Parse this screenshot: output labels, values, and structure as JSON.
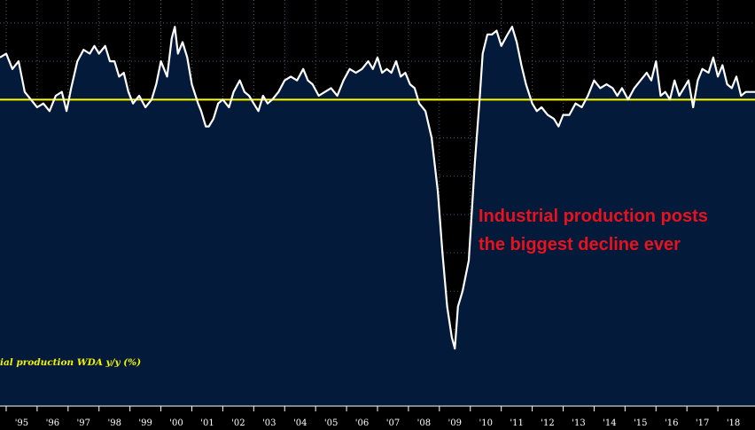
{
  "colors": {
    "background": "#000000",
    "fill": "#031a3a",
    "series_line": "#ffffff",
    "zero_line": "#ffff00",
    "grid": "#4a5a78",
    "label": "#f2f200",
    "annotation": "#e8121e"
  },
  "chart_data": {
    "type": "area",
    "series_label": "ial production WDA y/y (%)",
    "xlim": [
      1994.8,
      2019.2
    ],
    "ylim": [
      -40,
      13
    ],
    "x_ticks": [
      {
        "x": 1995.5,
        "label": "'95"
      },
      {
        "x": 1996.5,
        "label": "'96"
      },
      {
        "x": 1997.5,
        "label": "'97"
      },
      {
        "x": 1998.5,
        "label": "'98"
      },
      {
        "x": 1999.5,
        "label": "'99"
      },
      {
        "x": 2000.5,
        "label": "'00"
      },
      {
        "x": 2001.5,
        "label": "'01"
      },
      {
        "x": 2002.5,
        "label": "'02"
      },
      {
        "x": 2003.5,
        "label": "'03"
      },
      {
        "x": 2004.5,
        "label": "'04"
      },
      {
        "x": 2005.5,
        "label": "'05"
      },
      {
        "x": 2006.5,
        "label": "'06"
      },
      {
        "x": 2007.5,
        "label": "'07"
      },
      {
        "x": 2008.5,
        "label": "'08"
      },
      {
        "x": 2009.5,
        "label": "'09"
      },
      {
        "x": 2010.5,
        "label": "'10"
      },
      {
        "x": 2011.5,
        "label": "'11"
      },
      {
        "x": 2012.5,
        "label": "'12"
      },
      {
        "x": 2013.5,
        "label": "'13"
      },
      {
        "x": 2014.5,
        "label": "'14"
      },
      {
        "x": 2015.5,
        "label": "'15"
      },
      {
        "x": 2016.5,
        "label": "'16"
      },
      {
        "x": 2017.5,
        "label": "'17"
      },
      {
        "x": 2018.5,
        "label": "'18"
      }
    ],
    "reference_line": 0,
    "annotation": [
      "Industrial production posts",
      "the biggest decline ever"
    ],
    "points": [
      [
        1994.8,
        5.5
      ],
      [
        1995.0,
        6.0
      ],
      [
        1995.2,
        4.0
      ],
      [
        1995.4,
        5.0
      ],
      [
        1995.6,
        1.0
      ],
      [
        1995.8,
        0.0
      ],
      [
        1996.0,
        -1.0
      ],
      [
        1996.2,
        -0.5
      ],
      [
        1996.4,
        -1.5
      ],
      [
        1996.6,
        0.5
      ],
      [
        1996.8,
        1.0
      ],
      [
        1996.95,
        -1.5
      ],
      [
        1997.1,
        1.5
      ],
      [
        1997.3,
        5.0
      ],
      [
        1997.5,
        6.5
      ],
      [
        1997.7,
        6.0
      ],
      [
        1997.85,
        7.0
      ],
      [
        1998.0,
        6.0
      ],
      [
        1998.2,
        7.0
      ],
      [
        1998.35,
        5.0
      ],
      [
        1998.5,
        5.0
      ],
      [
        1998.65,
        3.0
      ],
      [
        1998.8,
        3.5
      ],
      [
        1998.95,
        1.0
      ],
      [
        1999.1,
        -0.5
      ],
      [
        1999.3,
        0.5
      ],
      [
        1999.5,
        -1.0
      ],
      [
        1999.7,
        0.0
      ],
      [
        1999.85,
        2.0
      ],
      [
        2000.0,
        5.0
      ],
      [
        2000.2,
        3.0
      ],
      [
        2000.35,
        8.0
      ],
      [
        2000.45,
        9.5
      ],
      [
        2000.55,
        6.0
      ],
      [
        2000.7,
        7.5
      ],
      [
        2000.85,
        5.5
      ],
      [
        2001.0,
        2.0
      ],
      [
        2001.2,
        -0.5
      ],
      [
        2001.3,
        -1.5
      ],
      [
        2001.45,
        -3.5
      ],
      [
        2001.55,
        -3.5
      ],
      [
        2001.7,
        -2.5
      ],
      [
        2001.85,
        -0.5
      ],
      [
        2002.0,
        0.0
      ],
      [
        2002.2,
        -1.0
      ],
      [
        2002.35,
        1.0
      ],
      [
        2002.55,
        2.5
      ],
      [
        2002.7,
        1.0
      ],
      [
        2002.85,
        0.5
      ],
      [
        2003.0,
        -0.5
      ],
      [
        2003.15,
        -1.5
      ],
      [
        2003.3,
        0.5
      ],
      [
        2003.45,
        -0.5
      ],
      [
        2003.6,
        0.0
      ],
      [
        2003.8,
        1.0
      ],
      [
        2004.0,
        2.5
      ],
      [
        2004.2,
        3.0
      ],
      [
        2004.4,
        2.5
      ],
      [
        2004.6,
        4.0
      ],
      [
        2004.75,
        2.5
      ],
      [
        2004.9,
        2.0
      ],
      [
        2005.1,
        0.5
      ],
      [
        2005.3,
        1.0
      ],
      [
        2005.5,
        1.5
      ],
      [
        2005.7,
        0.5
      ],
      [
        2005.9,
        2.5
      ],
      [
        2006.1,
        4.0
      ],
      [
        2006.3,
        3.5
      ],
      [
        2006.5,
        4.0
      ],
      [
        2006.7,
        5.0
      ],
      [
        2006.85,
        4.0
      ],
      [
        2007.0,
        5.5
      ],
      [
        2007.15,
        3.5
      ],
      [
        2007.3,
        4.0
      ],
      [
        2007.45,
        3.5
      ],
      [
        2007.6,
        5.0
      ],
      [
        2007.75,
        3.0
      ],
      [
        2007.9,
        3.5
      ],
      [
        2008.05,
        2.0
      ],
      [
        2008.2,
        1.5
      ],
      [
        2008.35,
        -0.5
      ],
      [
        2008.55,
        -1.5
      ],
      [
        2008.75,
        -5.0
      ],
      [
        2008.95,
        -12.0
      ],
      [
        2009.1,
        -20.0
      ],
      [
        2009.25,
        -27.0
      ],
      [
        2009.4,
        -31.0
      ],
      [
        2009.5,
        -32.5
      ],
      [
        2009.6,
        -27.0
      ],
      [
        2009.75,
        -25.0
      ],
      [
        2009.95,
        -21.0
      ],
      [
        2010.15,
        -8.0
      ],
      [
        2010.3,
        0.0
      ],
      [
        2010.4,
        6.0
      ],
      [
        2010.55,
        8.5
      ],
      [
        2010.7,
        8.5
      ],
      [
        2010.85,
        9.0
      ],
      [
        2011.0,
        7.0
      ],
      [
        2011.2,
        8.5
      ],
      [
        2011.35,
        9.5
      ],
      [
        2011.5,
        7.5
      ],
      [
        2011.65,
        4.5
      ],
      [
        2011.8,
        2.0
      ],
      [
        2012.0,
        -0.5
      ],
      [
        2012.15,
        -1.5
      ],
      [
        2012.3,
        -1.0
      ],
      [
        2012.5,
        -2.0
      ],
      [
        2012.7,
        -2.5
      ],
      [
        2012.85,
        -3.5
      ],
      [
        2013.0,
        -2.0
      ],
      [
        2013.2,
        -2.0
      ],
      [
        2013.4,
        -0.5
      ],
      [
        2013.6,
        -1.0
      ],
      [
        2013.8,
        0.5
      ],
      [
        2014.0,
        2.5
      ],
      [
        2014.2,
        1.5
      ],
      [
        2014.4,
        2.0
      ],
      [
        2014.6,
        1.5
      ],
      [
        2014.75,
        0.5
      ],
      [
        2014.9,
        1.5
      ],
      [
        2015.1,
        0.0
      ],
      [
        2015.3,
        1.5
      ],
      [
        2015.5,
        2.5
      ],
      [
        2015.7,
        3.5
      ],
      [
        2015.85,
        2.5
      ],
      [
        2016.0,
        5.0
      ],
      [
        2016.15,
        0.5
      ],
      [
        2016.3,
        1.0
      ],
      [
        2016.45,
        0.0
      ],
      [
        2016.6,
        2.5
      ],
      [
        2016.75,
        0.5
      ],
      [
        2016.9,
        1.5
      ],
      [
        2017.05,
        2.5
      ],
      [
        2017.2,
        -1.0
      ],
      [
        2017.35,
        2.5
      ],
      [
        2017.5,
        4.0
      ],
      [
        2017.7,
        3.5
      ],
      [
        2017.85,
        5.5
      ],
      [
        2018.0,
        3.0
      ],
      [
        2018.15,
        4.5
      ],
      [
        2018.3,
        2.0
      ],
      [
        2018.45,
        1.5
      ],
      [
        2018.6,
        3.0
      ],
      [
        2018.75,
        0.5
      ],
      [
        2018.9,
        1.0
      ],
      [
        2019.05,
        1.0
      ],
      [
        2019.2,
        1.0
      ]
    ]
  }
}
